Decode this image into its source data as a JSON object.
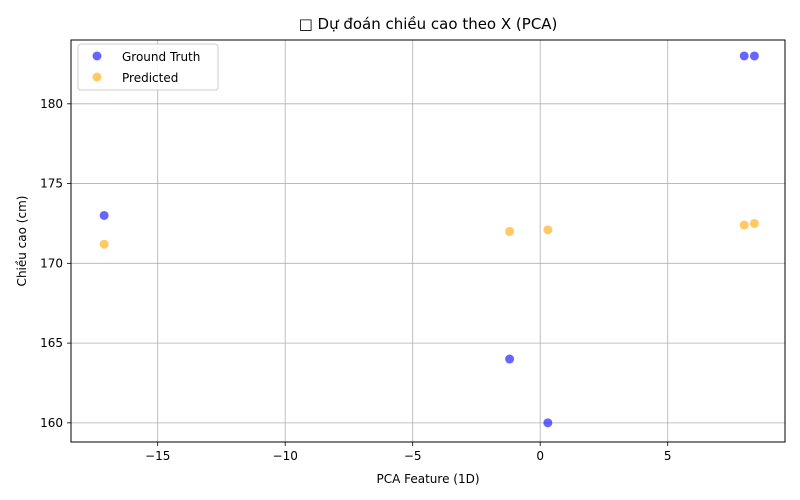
{
  "chart_data": {
    "type": "scatter",
    "title": "□ Dự đoán chiều cao theo X (PCA)",
    "xlabel": "PCA Feature (1D)",
    "ylabel": "Chiều cao (cm)",
    "xlim": [
      -18.4,
      9.6
    ],
    "ylim": [
      158.8,
      184.0
    ],
    "xticks": [
      -15,
      -10,
      -5,
      0,
      5
    ],
    "yticks": [
      160,
      165,
      170,
      175,
      180
    ],
    "grid": true,
    "legend_position": "top-left",
    "series": [
      {
        "name": "Ground Truth",
        "color": "#0000ff",
        "points": [
          {
            "x": -17.1,
            "y": 173.0
          },
          {
            "x": -1.2,
            "y": 164.0
          },
          {
            "x": 0.3,
            "y": 160.0
          },
          {
            "x": 8.0,
            "y": 183.0
          },
          {
            "x": 8.4,
            "y": 183.0
          }
        ]
      },
      {
        "name": "Predicted",
        "color": "#ffa500",
        "points": [
          {
            "x": -17.1,
            "y": 171.2
          },
          {
            "x": -1.2,
            "y": 172.0
          },
          {
            "x": 0.3,
            "y": 172.1
          },
          {
            "x": 8.0,
            "y": 172.4
          },
          {
            "x": 8.4,
            "y": 172.5
          }
        ]
      }
    ]
  }
}
